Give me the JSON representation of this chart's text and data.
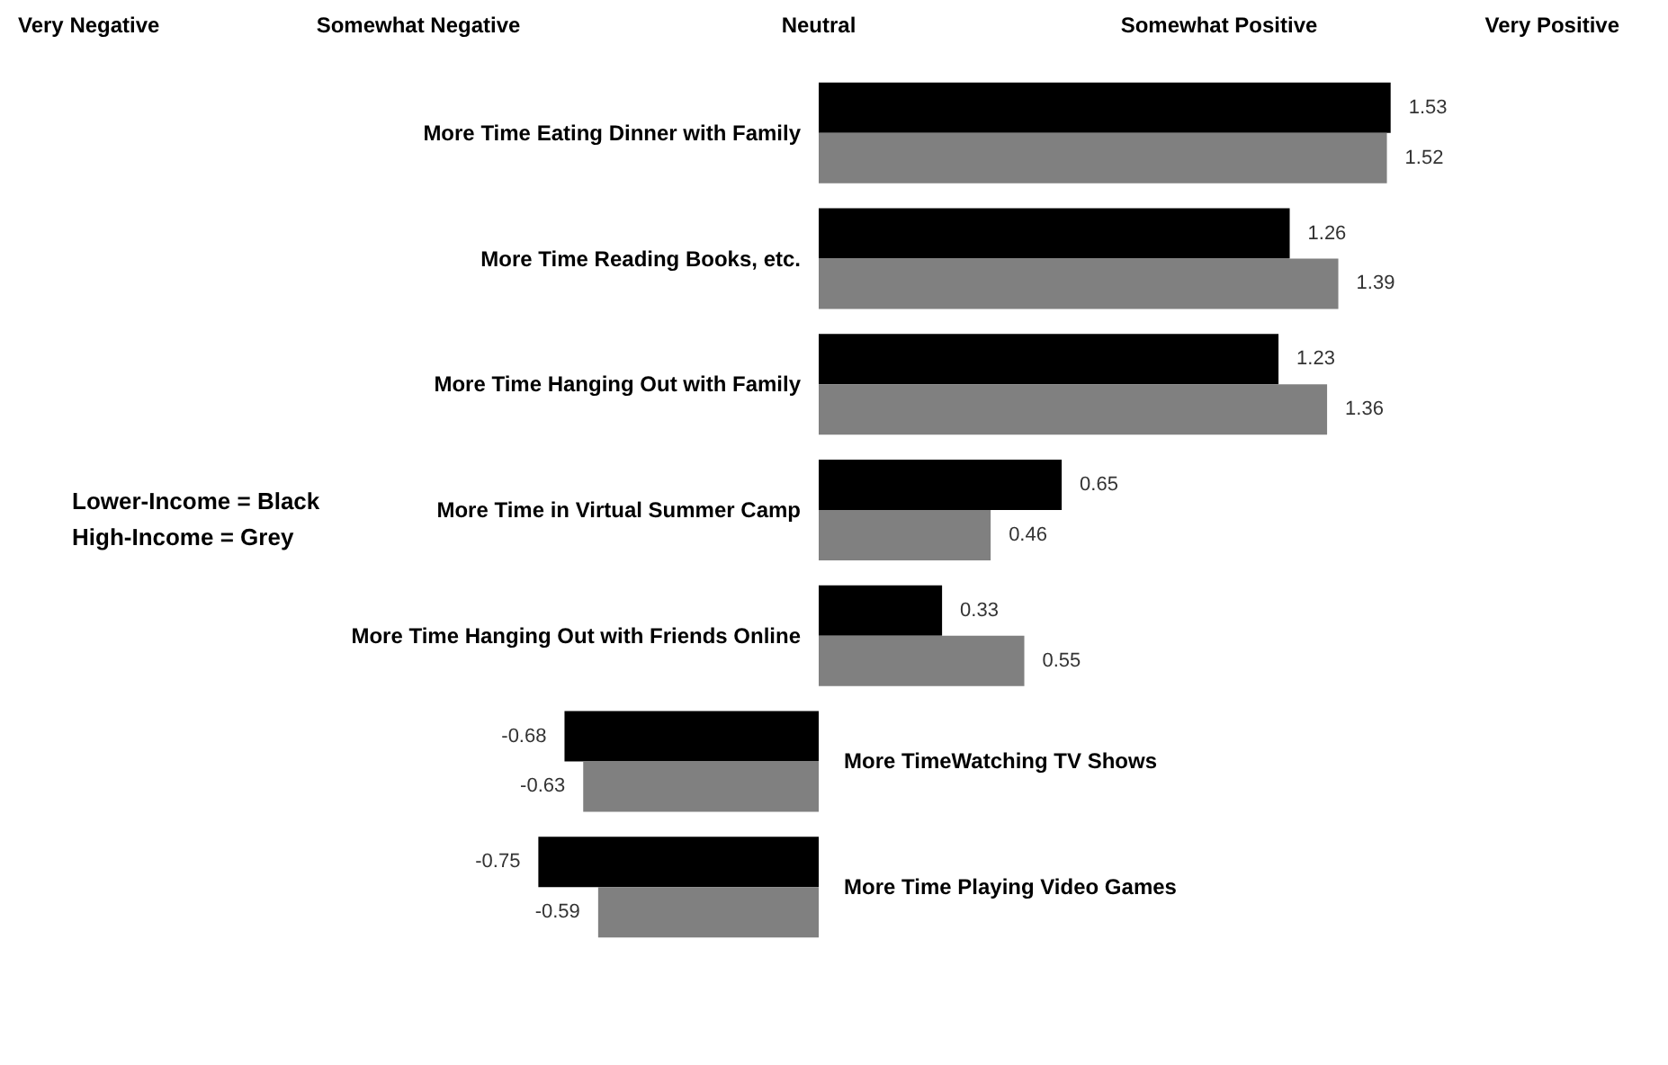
{
  "chart_data": {
    "type": "bar",
    "orientation": "horizontal",
    "categories": [
      "More Time Eating Dinner with Family",
      "More Time Reading Books, etc.",
      "More Time Hanging Out with Family",
      "More Time in Virtual Summer Camp",
      "More Time Hanging Out with Friends Online",
      "More TimeWatching TV Shows",
      "More Time Playing Video Games"
    ],
    "series": [
      {
        "color": "#000000",
        "values": [
          1.53,
          1.26,
          1.23,
          0.65,
          0.33,
          -0.68,
          -0.75
        ]
      },
      {
        "color": "#808080",
        "values": [
          1.52,
          1.39,
          1.36,
          0.46,
          0.55,
          -0.63,
          -0.59
        ]
      }
    ],
    "data_labels": true,
    "annotations": [
      "Very Negative",
      "Somewhat Negative",
      "Neutral",
      "Somewhat Positive",
      "Very Positive",
      "Lower-Income = Black",
      "High-Income = Grey"
    ]
  }
}
